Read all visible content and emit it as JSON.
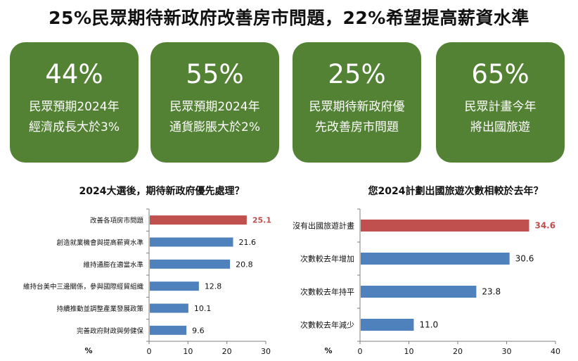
{
  "title": "25%民眾期待新政府改善房市問題，22%希望提高薪資水準",
  "cards": [
    {
      "value": "44%",
      "line1": "民眾預期2024年",
      "line2": "經濟成長大於3%"
    },
    {
      "value": "55%",
      "line1": "民眾預期2024年",
      "line2": "通貨膨脹大於2%"
    },
    {
      "value": "25%",
      "line1": "民眾期待新政府優",
      "line2": "先改善房市問題"
    },
    {
      "value": "65%",
      "line1": "民眾計畫今年",
      "line2": "將出國旅遊"
    }
  ],
  "colors": {
    "card_bg": "#548235",
    "highlight_bar": "#C0504D",
    "bar": "#4F81BD"
  },
  "chart_data": [
    {
      "type": "bar",
      "orientation": "horizontal",
      "title": "2024大選後，期待新政府優先處理？",
      "categories": [
        "改善各項房市問題",
        "創造就業機會與提高薪資水準",
        "維持通膨在適當水準",
        "維持台美中三邊關係，參與國際經貿組織",
        "持續推動並調整產業發展政策",
        "完善政府財政與勞健保"
      ],
      "values": [
        25.1,
        21.6,
        20.8,
        12.8,
        10.1,
        9.6
      ],
      "highlight_index": 0,
      "xlabel": "%",
      "xlim": [
        0,
        30
      ],
      "xticks": [
        0,
        10,
        20,
        30
      ]
    },
    {
      "type": "bar",
      "orientation": "horizontal",
      "title": "您2024計劃出國旅遊次數相較於去年？",
      "categories": [
        "沒有出國旅遊計畫",
        "次數較去年增加",
        "次數較去年持平",
        "次數較去年減少"
      ],
      "values": [
        34.6,
        30.6,
        23.8,
        11.0
      ],
      "highlight_index": 0,
      "xlabel": "%",
      "xlim": [
        0,
        40
      ],
      "xticks": [
        0,
        10,
        20,
        30,
        40
      ]
    }
  ]
}
